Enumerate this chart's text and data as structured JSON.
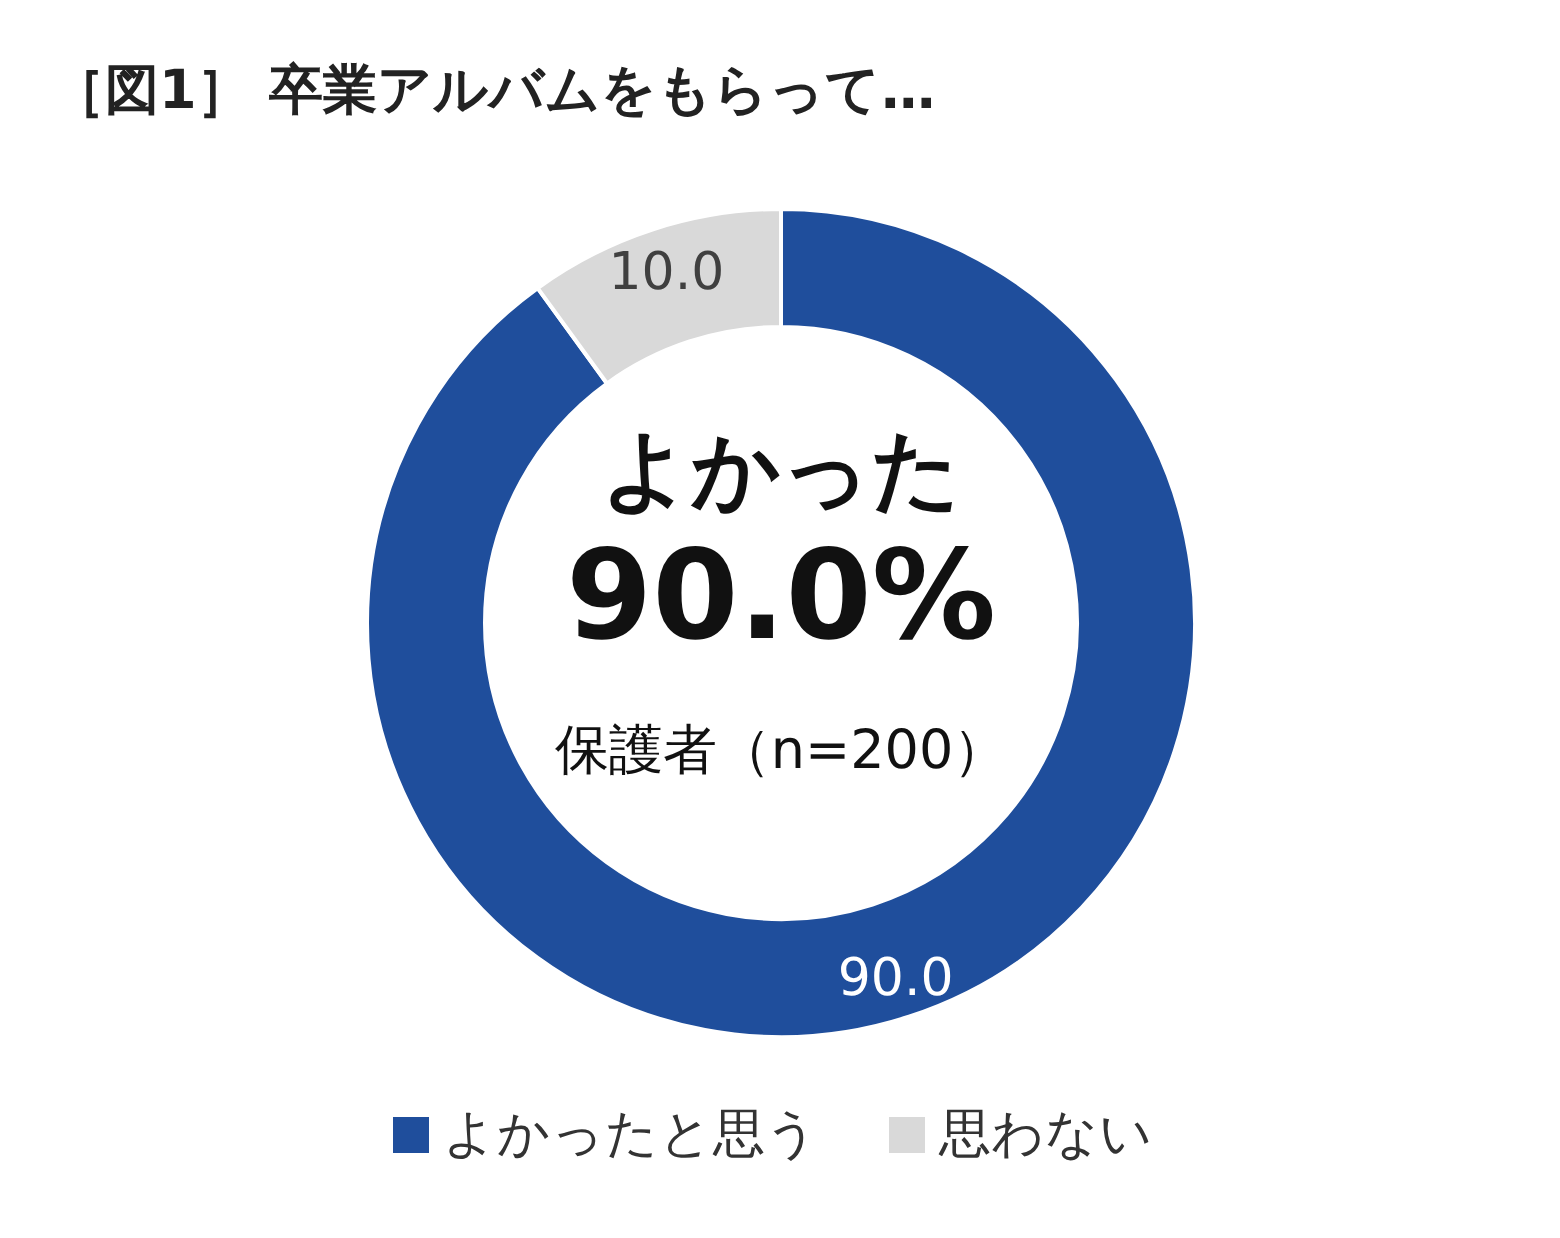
{
  "chart_data": {
    "type": "donut",
    "title": "［図1］ 卒業アルバムをもらって…",
    "categories": [
      "よかったと思う",
      "思わない"
    ],
    "values": [
      90,
      10
    ],
    "colors": [
      "#1f4e9c",
      "#d9d9d9"
    ],
    "value_labels": [
      "90.0",
      "10.0"
    ],
    "annotations": [
      "よかった",
      "90.0%",
      "保護者（n=200）"
    ],
    "legend": "bottom"
  }
}
